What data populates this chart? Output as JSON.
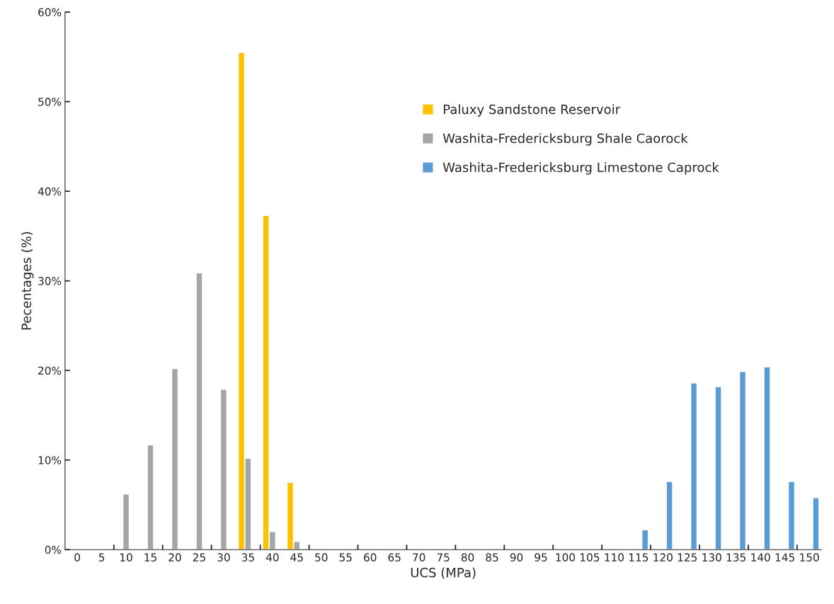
{
  "chart_data": {
    "type": "bar",
    "xlabel": "UCS (MPa)",
    "ylabel": "Pecentages (%)",
    "categories": [
      "0",
      "5",
      "10",
      "15",
      "20",
      "25",
      "30",
      "35",
      "40",
      "45",
      "50",
      "55",
      "60",
      "65",
      "70",
      "75",
      "80",
      "85",
      "90",
      "95",
      "100",
      "105",
      "110",
      "115",
      "120",
      "125",
      "130",
      "135",
      "140",
      "145",
      "150"
    ],
    "series": [
      {
        "name": "Paluxy Sandstone Reservoir",
        "color": "#ffc000",
        "values": [
          null,
          null,
          null,
          null,
          null,
          null,
          null,
          55.5,
          37.3,
          7.5,
          null,
          null,
          null,
          null,
          null,
          null,
          null,
          null,
          null,
          null,
          null,
          null,
          null,
          null,
          null,
          null,
          null,
          null,
          null,
          null,
          null
        ]
      },
      {
        "name": "Washita-Fredericksburg Shale Caorock",
        "color": "#a5a5a5",
        "values": [
          null,
          null,
          6.2,
          11.7,
          20.2,
          30.9,
          17.9,
          10.2,
          2.0,
          0.9,
          null,
          null,
          null,
          null,
          null,
          null,
          null,
          null,
          null,
          null,
          null,
          null,
          null,
          null,
          null,
          null,
          null,
          null,
          null,
          null,
          null
        ]
      },
      {
        "name": "Washita-Fredericksburg Limestone Caprock",
        "color": "#5b9bd5",
        "values": [
          null,
          null,
          null,
          null,
          null,
          null,
          null,
          null,
          null,
          null,
          null,
          null,
          null,
          null,
          null,
          null,
          null,
          null,
          null,
          null,
          null,
          null,
          null,
          2.2,
          7.6,
          18.6,
          18.2,
          19.9,
          20.4,
          7.6,
          5.8
        ]
      }
    ],
    "ylim": [
      0,
      60
    ],
    "yticks": [
      {
        "value": 0,
        "label": "0%"
      },
      {
        "value": 10,
        "label": "10%"
      },
      {
        "value": 20,
        "label": "20%"
      },
      {
        "value": 30,
        "label": "30%"
      },
      {
        "value": 40,
        "label": "40%"
      },
      {
        "value": 50,
        "label": "50%"
      },
      {
        "value": 60,
        "label": "60%"
      }
    ],
    "legend": "top right"
  }
}
